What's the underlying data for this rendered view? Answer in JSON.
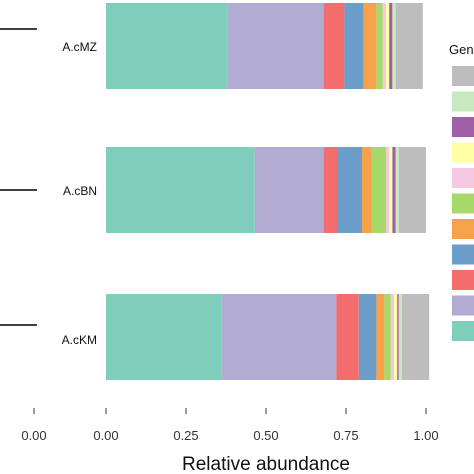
{
  "chart_data": {
    "type": "bar",
    "orientation": "horizontal",
    "stacked": true,
    "categories": [
      "A.cMZ",
      "A.cBN",
      "A.cKM"
    ],
    "series": [
      {
        "values": [
          0.38,
          0.465,
          0.36
        ],
        "color": "#7fcdbb"
      },
      {
        "values": [
          0.3,
          0.215,
          0.36
        ],
        "color": "#b2abd2"
      },
      {
        "values": [
          0.065,
          0.045,
          0.07
        ],
        "color": "#f46d6d"
      },
      {
        "values": [
          0.06,
          0.075,
          0.055
        ],
        "color": "#6c9ec9"
      },
      {
        "values": [
          0.04,
          0.03,
          0.025
        ],
        "color": "#f7a14a"
      },
      {
        "values": [
          0.02,
          0.045,
          0.02
        ],
        "color": "#a6d96a"
      },
      {
        "values": [
          0.01,
          0.01,
          0.01
        ],
        "color": "#f6c9e2"
      },
      {
        "values": [
          0.01,
          0.01,
          0.01
        ],
        "color": "#ffffa6"
      },
      {
        "values": [
          0.01,
          0.01,
          0.005
        ],
        "color": "#9e5fa7"
      },
      {
        "values": [
          0.01,
          0.01,
          0.01
        ],
        "color": "#c7e9c0"
      },
      {
        "values": [
          0.085,
          0.085,
          0.085
        ],
        "color": "#bdbdbd"
      }
    ],
    "xlabel": "Relative abundance",
    "x_ticks": [
      "0.00",
      "0.25",
      "0.50",
      "0.75",
      "1.00"
    ],
    "xlim": [
      0,
      1
    ],
    "left_panel_ticks": [
      "0.00"
    ],
    "legend_title": "Gen",
    "legend_placement": "right",
    "grid": false
  }
}
